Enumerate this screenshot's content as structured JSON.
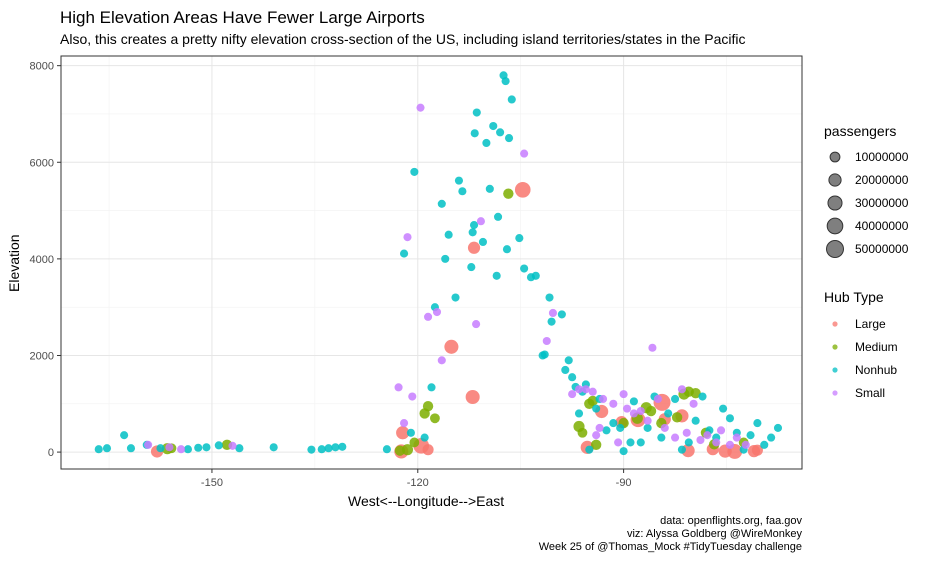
{
  "header": {
    "title": "High Elevation Areas Have Fewer Large Airports",
    "subtitle": "Also, this creates a pretty nifty elevation cross-section of the US, including island territories/states in the Pacific"
  },
  "caption": {
    "line1": "data: openflights.org, faa.gov",
    "line2": "viz: Alyssa Goldberg @WireMonkey",
    "line3": "Week 25 of @Thomas_Mock #TidyTuesday challenge"
  },
  "chart_data": {
    "type": "scatter",
    "title": "High Elevation Areas Have Fewer Large Airports",
    "subtitle": "Also, this creates a pretty nifty elevation cross-section of the US, including island territories/states in the Pacific",
    "xlabel": "West<--Longitude-->East",
    "ylabel": "Elevation",
    "xlim": [
      -172,
      -64
    ],
    "ylim": [
      -350,
      8200
    ],
    "x_ticks": [
      -150,
      -120,
      -90
    ],
    "y_ticks": [
      0,
      2000,
      4000,
      6000,
      8000
    ],
    "grid": true,
    "legend_position": "right",
    "size_legend": {
      "title": "passengers",
      "entries": [
        {
          "label": "10000000",
          "value": 10000000
        },
        {
          "label": "20000000",
          "value": 20000000
        },
        {
          "label": "30000000",
          "value": 30000000
        },
        {
          "label": "40000000",
          "value": 40000000
        },
        {
          "label": "50000000",
          "value": 50000000
        }
      ]
    },
    "color_legend": {
      "title": "Hub Type",
      "entries": [
        {
          "label": "Large",
          "color": "#F8766D"
        },
        {
          "label": "Medium",
          "color": "#7CAE00"
        },
        {
          "label": "Nonhub",
          "color": "#00BFC4"
        },
        {
          "label": "Small",
          "color": "#C77CFF"
        }
      ]
    },
    "series": [
      {
        "name": "Large",
        "color": "#F8766D",
        "points": [
          [
            -158,
            13,
            20000000
          ],
          [
            -122.4,
            13,
            30000000
          ],
          [
            -122.2,
            400,
            25000000
          ],
          [
            -119.5,
            130,
            40000000
          ],
          [
            -118.5,
            50,
            15000000
          ],
          [
            -115.1,
            2180,
            30000000
          ],
          [
            -112,
            1140,
            30000000
          ],
          [
            -111.8,
            4230,
            20000000
          ],
          [
            -104.7,
            5430,
            40000000
          ],
          [
            -95.3,
            98,
            25000000
          ],
          [
            -93.2,
            840,
            25000000
          ],
          [
            -90.3,
            620,
            20000000
          ],
          [
            -87.9,
            670,
            35000000
          ],
          [
            -84.4,
            1030,
            50000000
          ],
          [
            -84,
            680,
            20000000
          ],
          [
            -81.5,
            750,
            25000000
          ],
          [
            -80.6,
            30,
            25000000
          ],
          [
            -77,
            60,
            20000000
          ],
          [
            -75.2,
            20,
            25000000
          ],
          [
            -73.8,
            13,
            35000000
          ],
          [
            -71,
            20,
            20000000
          ],
          [
            -70.5,
            40,
            15000000
          ]
        ]
      },
      {
        "name": "Medium",
        "color": "#7CAE00",
        "points": [
          [
            -156.5,
            70,
            15000000
          ],
          [
            -155.9,
            80,
            10000000
          ],
          [
            -147.8,
            150,
            12000000
          ],
          [
            -122.6,
            30,
            12000000
          ],
          [
            -121.5,
            50,
            15000000
          ],
          [
            -120.5,
            200,
            10000000
          ],
          [
            -119,
            800,
            12000000
          ],
          [
            -118.5,
            950,
            12000000
          ],
          [
            -117.5,
            700,
            10000000
          ],
          [
            -106.8,
            5350,
            12000000
          ],
          [
            -96.5,
            530,
            15000000
          ],
          [
            -96,
            400,
            10000000
          ],
          [
            -95,
            1000,
            12000000
          ],
          [
            -94.5,
            1060,
            12000000
          ],
          [
            -94,
            150,
            12000000
          ],
          [
            -90,
            600,
            12000000
          ],
          [
            -88,
            700,
            15000000
          ],
          [
            -86.7,
            920,
            15000000
          ],
          [
            -86,
            850,
            12000000
          ],
          [
            -84.5,
            600,
            12000000
          ],
          [
            -82.2,
            720,
            12000000
          ],
          [
            -81.2,
            1200,
            15000000
          ],
          [
            -80.5,
            1250,
            12000000
          ],
          [
            -79.5,
            1220,
            12000000
          ],
          [
            -78,
            400,
            12000000
          ],
          [
            -76.8,
            160,
            12000000
          ],
          [
            -72.5,
            200,
            10000000
          ]
        ]
      },
      {
        "name": "Nonhub",
        "color": "#00BFC4",
        "points": [
          [
            -166.5,
            60,
            5000000
          ],
          [
            -165.3,
            80,
            5000000
          ],
          [
            -162.8,
            350,
            5000000
          ],
          [
            -161.8,
            80,
            5000000
          ],
          [
            -159.5,
            150,
            5000000
          ],
          [
            -157.5,
            80,
            5000000
          ],
          [
            -153.5,
            60,
            5000000
          ],
          [
            -152,
            90,
            5000000
          ],
          [
            -150.8,
            100,
            5000000
          ],
          [
            -149,
            140,
            5000000
          ],
          [
            -146,
            80,
            5000000
          ],
          [
            -141,
            100,
            5000000
          ],
          [
            -135.5,
            50,
            5000000
          ],
          [
            -134,
            60,
            5000000
          ],
          [
            -133,
            80,
            5000000
          ],
          [
            -132,
            100,
            5000000
          ],
          [
            -131,
            110,
            5000000
          ],
          [
            -124.5,
            60,
            5000000
          ],
          [
            -122,
            4110,
            5000000
          ],
          [
            -121,
            400,
            5000000
          ],
          [
            -120.5,
            5800,
            5000000
          ],
          [
            -119,
            300,
            5000000
          ],
          [
            -118,
            1340,
            5000000
          ],
          [
            -117.5,
            3000,
            5000000
          ],
          [
            -116.5,
            5140,
            5000000
          ],
          [
            -116,
            4000,
            5000000
          ],
          [
            -115.5,
            4500,
            5000000
          ],
          [
            -114.5,
            3200,
            5000000
          ],
          [
            -114,
            5620,
            5000000
          ],
          [
            -113.5,
            5400,
            5000000
          ],
          [
            -112.2,
            3830,
            5000000
          ],
          [
            -112,
            4550,
            5000000
          ],
          [
            -111.8,
            4700,
            5000000
          ],
          [
            -111.7,
            6600,
            5000000
          ],
          [
            -111.4,
            7030,
            5000000
          ],
          [
            -110.5,
            4350,
            5000000
          ],
          [
            -110,
            6400,
            5000000
          ],
          [
            -109.5,
            5450,
            5000000
          ],
          [
            -109,
            6750,
            5000000
          ],
          [
            -108.5,
            3650,
            5000000
          ],
          [
            -108.3,
            4870,
            5000000
          ],
          [
            -108,
            6620,
            5000000
          ],
          [
            -107.5,
            7800,
            5000000
          ],
          [
            -107.2,
            7680,
            5000000
          ],
          [
            -107,
            4200,
            5000000
          ],
          [
            -106.7,
            6500,
            5000000
          ],
          [
            -106.3,
            7300,
            5000000
          ],
          [
            -105.2,
            4430,
            5000000
          ],
          [
            -104.5,
            3800,
            5000000
          ],
          [
            -103.5,
            3620,
            5000000
          ],
          [
            -102.8,
            3650,
            5000000
          ],
          [
            -101.8,
            2000,
            5000000
          ],
          [
            -101.5,
            2020,
            5000000
          ],
          [
            -100.8,
            3200,
            5000000
          ],
          [
            -100.5,
            2700,
            5000000
          ],
          [
            -99,
            2850,
            5000000
          ],
          [
            -98.5,
            1700,
            5000000
          ],
          [
            -98,
            1900,
            5000000
          ],
          [
            -97.5,
            1550,
            5000000
          ],
          [
            -97,
            1350,
            5000000
          ],
          [
            -96.5,
            800,
            5000000
          ],
          [
            -96,
            1250,
            5000000
          ],
          [
            -95.5,
            1400,
            5000000
          ],
          [
            -95,
            50,
            5000000
          ],
          [
            -94,
            900,
            5000000
          ],
          [
            -93.5,
            1100,
            5000000
          ],
          [
            -92.5,
            450,
            5000000
          ],
          [
            -91.5,
            600,
            5000000
          ],
          [
            -90.5,
            500,
            5000000
          ],
          [
            -90,
            20,
            5000000
          ],
          [
            -89,
            200,
            5000000
          ],
          [
            -88.5,
            1050,
            5000000
          ],
          [
            -87.5,
            200,
            5000000
          ],
          [
            -86.5,
            500,
            5000000
          ],
          [
            -85.5,
            1150,
            5000000
          ],
          [
            -84.5,
            300,
            5000000
          ],
          [
            -83.5,
            800,
            5000000
          ],
          [
            -82.5,
            1100,
            5000000
          ],
          [
            -81.5,
            50,
            5000000
          ],
          [
            -80.5,
            200,
            5000000
          ],
          [
            -79.5,
            650,
            5000000
          ],
          [
            -78.5,
            1150,
            5000000
          ],
          [
            -77.5,
            450,
            5000000
          ],
          [
            -76.5,
            300,
            5000000
          ],
          [
            -75.5,
            900,
            5000000
          ],
          [
            -74.5,
            700,
            5000000
          ],
          [
            -73.5,
            400,
            5000000
          ],
          [
            -72.5,
            50,
            5000000
          ],
          [
            -71.5,
            350,
            5000000
          ],
          [
            -70.5,
            600,
            5000000
          ],
          [
            -69.5,
            150,
            5000000
          ],
          [
            -68.5,
            300,
            5000000
          ],
          [
            -67.5,
            500,
            5000000
          ]
        ]
      },
      {
        "name": "Small",
        "color": "#C77CFF",
        "points": [
          [
            -159.3,
            150,
            5000000
          ],
          [
            -156.2,
            100,
            5000000
          ],
          [
            -154.5,
            60,
            5000000
          ],
          [
            -147,
            130,
            5000000
          ],
          [
            -122.8,
            1340,
            5000000
          ],
          [
            -122,
            600,
            5000000
          ],
          [
            -121.5,
            4450,
            5000000
          ],
          [
            -120.8,
            1150,
            5000000
          ],
          [
            -119.6,
            7130,
            5000000
          ],
          [
            -118.5,
            2800,
            5000000
          ],
          [
            -117.2,
            2900,
            5000000
          ],
          [
            -116.5,
            1900,
            5000000
          ],
          [
            -111.5,
            2650,
            5000000
          ],
          [
            -110.8,
            4780,
            5000000
          ],
          [
            -104.5,
            6180,
            5000000
          ],
          [
            -101.2,
            2300,
            5000000
          ],
          [
            -100.3,
            2880,
            5000000
          ],
          [
            -97.5,
            1200,
            5000000
          ],
          [
            -96.5,
            1300,
            5000000
          ],
          [
            -95.5,
            1300,
            5000000
          ],
          [
            -94.5,
            1250,
            5000000
          ],
          [
            -94,
            350,
            5000000
          ],
          [
            -93.5,
            500,
            5000000
          ],
          [
            -93,
            1100,
            5000000
          ],
          [
            -91.5,
            1000,
            5000000
          ],
          [
            -90.8,
            200,
            5000000
          ],
          [
            -90,
            1200,
            5000000
          ],
          [
            -89.5,
            900,
            5000000
          ],
          [
            -88.5,
            800,
            5000000
          ],
          [
            -87.5,
            850,
            5000000
          ],
          [
            -86.5,
            650,
            5000000
          ],
          [
            -85.8,
            2160,
            5000000
          ],
          [
            -85,
            1100,
            5000000
          ],
          [
            -84,
            500,
            5000000
          ],
          [
            -82.5,
            300,
            5000000
          ],
          [
            -81.5,
            1300,
            5000000
          ],
          [
            -80.8,
            400,
            5000000
          ],
          [
            -79.8,
            1000,
            5000000
          ],
          [
            -78.8,
            250,
            5000000
          ],
          [
            -77.8,
            350,
            5000000
          ],
          [
            -76.5,
            200,
            5000000
          ],
          [
            -75.8,
            450,
            5000000
          ],
          [
            -74.5,
            150,
            5000000
          ],
          [
            -73.5,
            300,
            5000000
          ],
          [
            -72.2,
            150,
            5000000
          ]
        ]
      }
    ]
  }
}
